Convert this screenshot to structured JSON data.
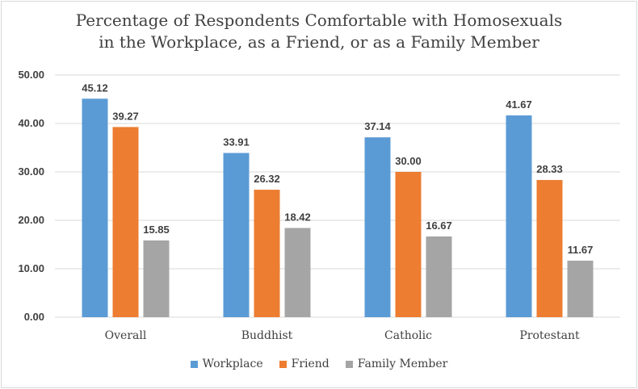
{
  "chart_data": {
    "type": "bar",
    "title_line1": "Percentage of Respondents Comfortable with Homosexuals",
    "title_line2": "in the Workplace, as a Friend, or as a Family Member",
    "categories": [
      "Overall",
      "Buddhist",
      "Catholic",
      "Protestant"
    ],
    "series": [
      {
        "name": "Workplace",
        "color": "#5b9bd5",
        "values": [
          45.12,
          33.91,
          37.14,
          41.67
        ]
      },
      {
        "name": "Friend",
        "color": "#ed7d31",
        "values": [
          39.27,
          26.32,
          30.0,
          28.33
        ]
      },
      {
        "name": "Family Member",
        "color": "#a5a5a5",
        "values": [
          15.85,
          18.42,
          16.67,
          11.67
        ]
      }
    ],
    "ylim": [
      0,
      50
    ],
    "yticks": [
      "0.00",
      "10.00",
      "20.00",
      "30.00",
      "40.00",
      "50.00"
    ],
    "grid": true,
    "legend_position": "bottom"
  }
}
